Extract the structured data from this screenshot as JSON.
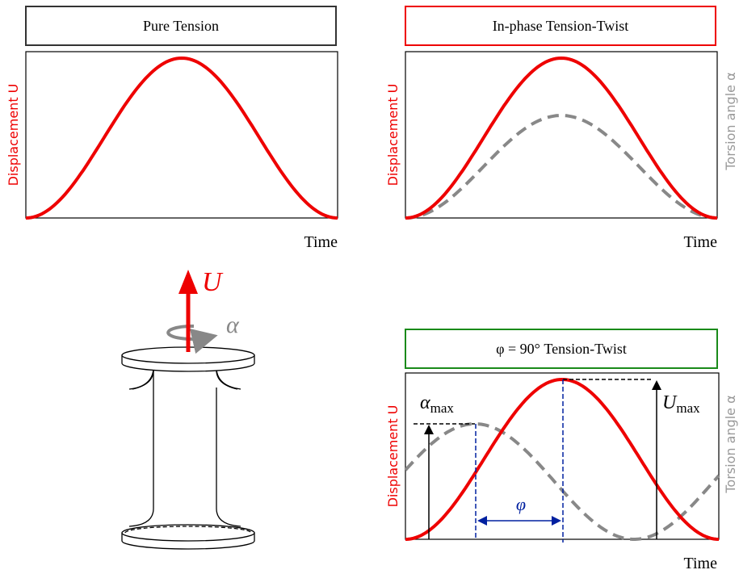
{
  "panels": [
    {
      "title": "Pure Tension",
      "y_label": "Displacement U",
      "x_label": "Time"
    },
    {
      "title": "In-phase Tension-Twist",
      "y_label": "Displacement U",
      "y2_label": "Torsion angle α",
      "x_label": "Time"
    },
    {
      "title": "φ = 90° Tension-Twist",
      "y_label": "Displacement U",
      "y2_label": "Torsion angle α",
      "x_label": "Time",
      "annotations": {
        "alpha_max": {
          "symbol": "α",
          "subscript": "max"
        },
        "u_max": {
          "symbol": "U",
          "subscript": "max"
        },
        "phase": "φ"
      }
    }
  ],
  "specimen": {
    "force_label": "U",
    "twist_label": "α"
  }
}
